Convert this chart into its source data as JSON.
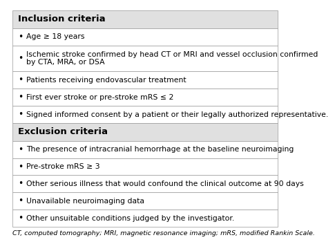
{
  "header1": "Inclusion criteria",
  "header2": "Exclusion criteria",
  "inclusion_items": [
    "Age ≥ 18 years",
    "Ischemic stroke confirmed by head CT or MRI and vessel occlusion confirmed\nby CTA, MRA, or DSA",
    "Patients receiving endovascular treatment",
    "First ever stroke or pre-stroke mRS ≤ 2",
    "Signed informed consent by a patient or their legally authorized representative."
  ],
  "exclusion_items": [
    "The presence of intracranial hemorrhage at the baseline neuroimaging",
    "Pre-stroke mRS ≥ 3",
    "Other serious illness that would confound the clinical outcome at 90 days",
    "Unavailable neuroimaging data",
    "Other unsuitable conditions judged by the investigator."
  ],
  "footer": "CT, computed tomography; MRI, magnetic resonance imaging; mRS, modified Rankin Scale.",
  "header_bg": "#e0e0e0",
  "row_bg": "#ffffff",
  "border_color": "#aaaaaa",
  "header_fontsize": 9.5,
  "body_fontsize": 7.8,
  "footer_fontsize": 6.8,
  "bullet": "•"
}
